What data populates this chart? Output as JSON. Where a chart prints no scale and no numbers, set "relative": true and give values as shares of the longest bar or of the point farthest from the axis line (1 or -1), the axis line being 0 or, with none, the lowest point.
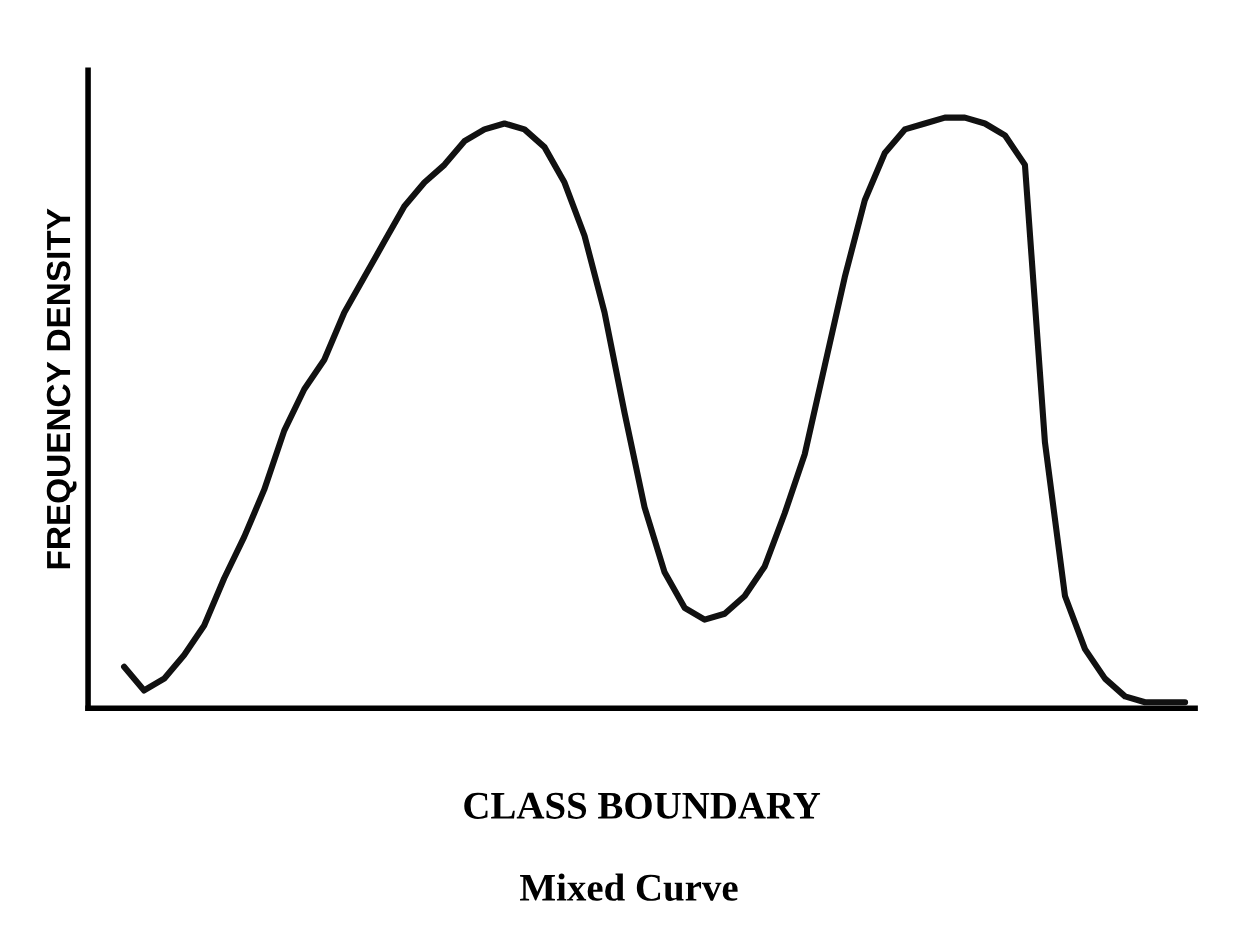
{
  "chart_data": {
    "type": "line",
    "relative": true,
    "title": "Mixed Curve",
    "xlabel": "CLASS BOUNDARY",
    "ylabel": "FREQUENCY DENSITY",
    "categories": [
      null,
      null,
      null,
      null,
      null,
      null,
      null,
      null,
      null,
      null,
      null,
      null,
      null,
      null,
      null,
      null,
      null,
      null,
      null,
      null,
      null,
      null,
      null,
      null,
      null,
      null,
      null,
      null,
      null,
      null,
      null,
      null,
      null,
      null,
      null,
      null,
      null,
      null,
      null,
      null,
      null,
      null,
      null,
      null,
      null,
      null,
      null,
      null,
      null,
      null,
      null,
      null,
      null,
      null
    ],
    "series": [
      {
        "color": "#111111",
        "values": [
          0.07,
          0.03,
          0.05,
          0.09,
          0.14,
          0.22,
          0.29,
          0.37,
          0.47,
          0.54,
          0.59,
          0.67,
          0.73,
          0.79,
          0.85,
          0.89,
          0.92,
          0.96,
          0.98,
          0.99,
          0.98,
          0.95,
          0.89,
          0.8,
          0.67,
          0.5,
          0.34,
          0.23,
          0.17,
          0.15,
          0.16,
          0.19,
          0.24,
          0.33,
          0.43,
          0.58,
          0.73,
          0.86,
          0.94,
          0.98,
          0.99,
          1.0,
          1.0,
          0.99,
          0.97,
          0.92,
          0.45,
          0.19,
          0.1,
          0.05,
          0.02,
          0.01,
          0.01,
          0.01
        ]
      }
    ],
    "marker": "none",
    "line_style": "solid"
  }
}
